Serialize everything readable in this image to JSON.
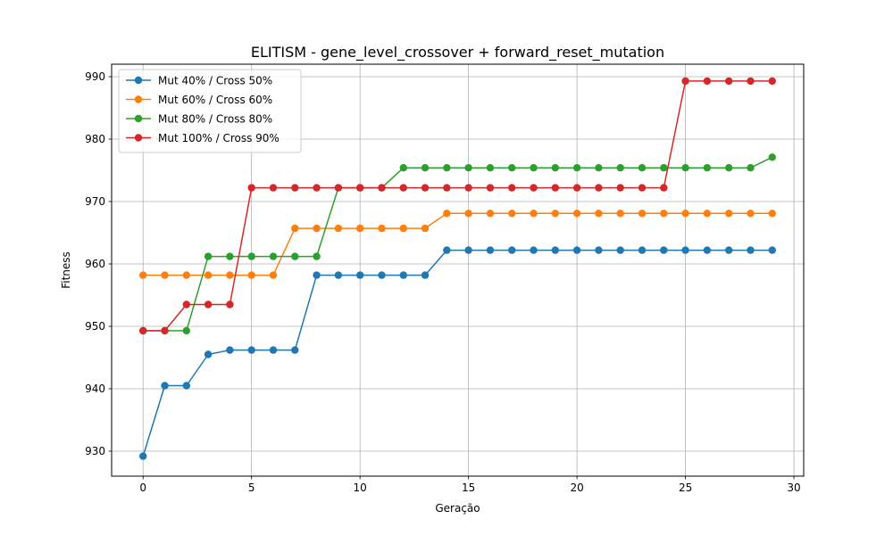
{
  "chart_data": {
    "type": "line",
    "title": "ELITISM - gene_level_crossover + forward_reset_mutation",
    "xlabel": "Geração",
    "ylabel": "Fitness",
    "xlim": [
      -1.45,
      30.45
    ],
    "ylim": [
      926.0,
      992.0
    ],
    "xticks": [
      0,
      5,
      10,
      15,
      20,
      25,
      30
    ],
    "yticks": [
      930,
      940,
      950,
      960,
      970,
      980,
      990
    ],
    "grid": true,
    "legend_position": "top-left",
    "x": [
      0,
      1,
      2,
      3,
      4,
      5,
      6,
      7,
      8,
      9,
      10,
      11,
      12,
      13,
      14,
      15,
      16,
      17,
      18,
      19,
      20,
      21,
      22,
      23,
      24,
      25,
      26,
      27,
      28,
      29
    ],
    "series": [
      {
        "name": "Mut 40% / Cross 50%",
        "color": "#1f77b4",
        "values": [
          929.2,
          940.5,
          940.5,
          945.5,
          946.2,
          946.2,
          946.2,
          946.2,
          958.2,
          958.2,
          958.2,
          958.2,
          958.2,
          958.2,
          962.2,
          962.2,
          962.2,
          962.2,
          962.2,
          962.2,
          962.2,
          962.2,
          962.2,
          962.2,
          962.2,
          962.2,
          962.2,
          962.2,
          962.2,
          962.2
        ]
      },
      {
        "name": "Mut 60% / Cross 60%",
        "color": "#ff7f0e",
        "values": [
          958.2,
          958.2,
          958.2,
          958.2,
          958.2,
          958.2,
          958.2,
          965.7,
          965.7,
          965.7,
          965.7,
          965.7,
          965.7,
          965.7,
          968.1,
          968.1,
          968.1,
          968.1,
          968.1,
          968.1,
          968.1,
          968.1,
          968.1,
          968.1,
          968.1,
          968.1,
          968.1,
          968.1,
          968.1,
          968.1
        ]
      },
      {
        "name": "Mut 80% / Cross 80%",
        "color": "#2ca02c",
        "values": [
          949.3,
          949.3,
          949.3,
          961.2,
          961.2,
          961.2,
          961.2,
          961.2,
          961.2,
          972.2,
          972.2,
          972.2,
          975.4,
          975.4,
          975.4,
          975.4,
          975.4,
          975.4,
          975.4,
          975.4,
          975.4,
          975.4,
          975.4,
          975.4,
          975.4,
          975.4,
          975.4,
          975.4,
          975.4,
          977.1
        ]
      },
      {
        "name": "Mut 100% / Cross 90%",
        "color": "#d62728",
        "values": [
          949.3,
          949.3,
          953.5,
          953.5,
          953.5,
          972.2,
          972.2,
          972.2,
          972.2,
          972.2,
          972.2,
          972.2,
          972.2,
          972.2,
          972.2,
          972.2,
          972.2,
          972.2,
          972.2,
          972.2,
          972.2,
          972.2,
          972.2,
          972.2,
          972.2,
          989.3,
          989.3,
          989.3,
          989.3,
          989.3
        ]
      }
    ]
  }
}
